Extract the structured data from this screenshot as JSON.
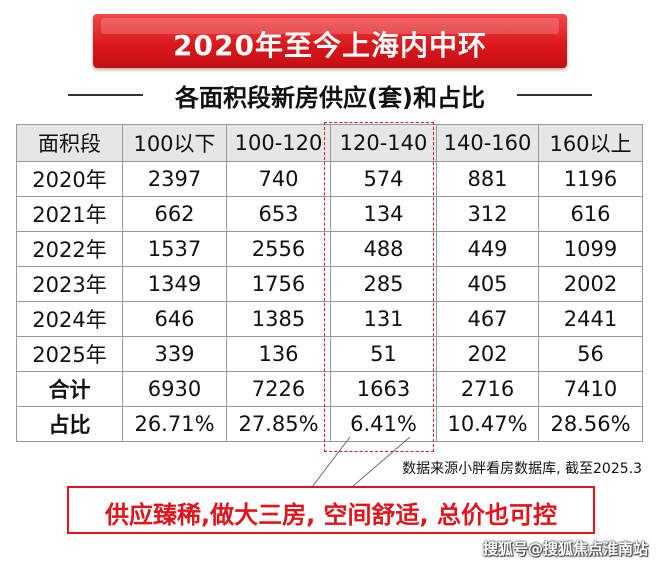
{
  "banner": {
    "title": "2020年至今上海内中环"
  },
  "subtitle": "各面积段新房供应(套)和占比",
  "chart_data": {
    "type": "table",
    "title": "2020年至今上海内中环",
    "subtitle": "各面积段新房供应(套)和占比",
    "columns": [
      "面积段",
      "100以下",
      "100-120",
      "120-140",
      "140-160",
      "160以上"
    ],
    "rows": [
      [
        "2020年",
        "2397",
        "740",
        "574",
        "881",
        "1196"
      ],
      [
        "2021年",
        "662",
        "653",
        "134",
        "312",
        "616"
      ],
      [
        "2022年",
        "1537",
        "2556",
        "488",
        "449",
        "1099"
      ],
      [
        "2023年",
        "1349",
        "1756",
        "285",
        "405",
        "2002"
      ],
      [
        "2024年",
        "646",
        "1385",
        "131",
        "467",
        "2441"
      ],
      [
        "2025年",
        "339",
        "136",
        "51",
        "202",
        "56"
      ],
      [
        "合计",
        "6930",
        "7226",
        "1663",
        "2716",
        "7410"
      ],
      [
        "占比",
        "26.71%",
        "27.85%",
        "6.41%",
        "10.47%",
        "28.56%"
      ]
    ],
    "highlight_column": "120-140"
  },
  "source": "数据来源小胖看房数据库, 截至2025.3",
  "callout": "供应臻稀,做大三房, 空间舒适, 总价也可控",
  "watermark": "搜狐号@搜狐焦点淮南站",
  "colors": {
    "accent": "#e3131b",
    "header_bg": "#e6e6e6",
    "banner": "#d9161c"
  }
}
